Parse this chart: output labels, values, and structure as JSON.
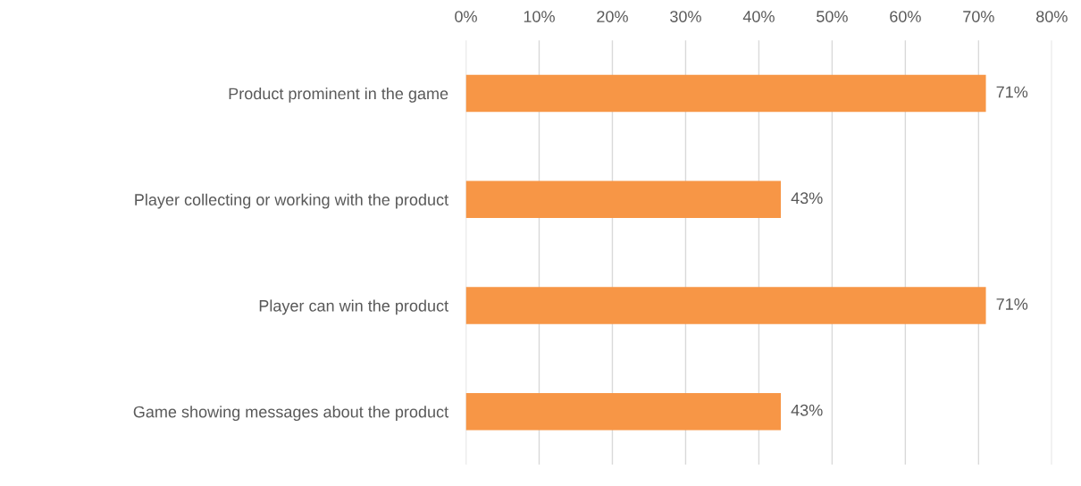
{
  "chart_data": {
    "type": "bar",
    "orientation": "horizontal",
    "categories": [
      "Product prominent in the game",
      "Player collecting or working with the product",
      "Player can win the product",
      "Game showing messages about the product"
    ],
    "values": [
      71,
      43,
      71,
      43
    ],
    "value_labels": [
      "71%",
      "43%",
      "71%",
      "43%"
    ],
    "color": "#f79646",
    "xlim": [
      0,
      80
    ],
    "xticks": [
      {
        "value": 0,
        "label": "0%"
      },
      {
        "value": 10,
        "label": "10%"
      },
      {
        "value": 20,
        "label": "20%"
      },
      {
        "value": 30,
        "label": "30%"
      },
      {
        "value": 40,
        "label": "40%"
      },
      {
        "value": 50,
        "label": "50%"
      },
      {
        "value": 60,
        "label": "60%"
      },
      {
        "value": 70,
        "label": "70%"
      },
      {
        "value": 80,
        "label": "80%"
      }
    ],
    "grid": "x",
    "legend": false
  }
}
